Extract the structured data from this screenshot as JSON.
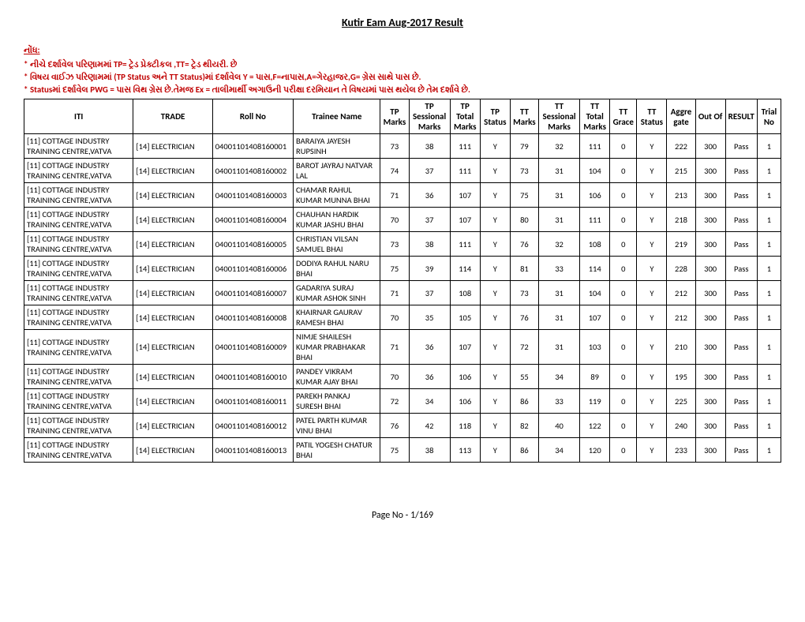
{
  "title": "Kutir Eam Aug-2017 Result",
  "notes": {
    "heading": "નોંધ:",
    "line1": "* નીચે દર્શાવેલ પરિણામમાં TP= ટ્રેડ પ્રેક્ટીકલ ,TT= ટ્રેડ થીયરી. છે",
    "line2": "* વિષય વાઈઝ પરિણામમાં (TP Status અને TT Status)માં દર્શાવેલ Y = પાસ,F=નાપાસ,A=ગેરહાજર,G= ગ્રેસ સાથે પાસ છે.",
    "line3": "* Statusમાં દર્શાવેલ PWG = પાસ વિથ ગ્રેસ છે.તેમજ Ex = તાલીમાર્થી અગાઉની પરીક્ષા દરમિયાન તે વિષયમાં પાસ થયેલ છે તેમ દર્શાવે છે."
  },
  "headers": {
    "iti": "ITI",
    "trade": "TRADE",
    "roll": "Roll No",
    "trainee": "Trainee Name",
    "tp_marks": "TP Marks",
    "tp_sessional": "TP Sessional Marks",
    "tp_total": "TP Total Marks",
    "tp_status": "TP Status",
    "tt_marks": "TT Marks",
    "tt_sessional": "TT Sessional Marks",
    "tt_total": "TT Total Marks",
    "tt_grace": "TT Grace",
    "tt_status": "TT Status",
    "aggregate": "Aggre gate",
    "outof": "Out Of",
    "result": "RESULT",
    "trial": "Trial No"
  },
  "iti_name": "[11] COTTAGE INDUSTRY TRAINING CENTRE,VATVA",
  "trade_name": "[14] ELECTRICIAN",
  "rows": [
    {
      "roll": "04001101408160001",
      "name": "BARAIYA JAYESH RUPSINH",
      "tpm": "73",
      "tps": "38",
      "tpt": "111",
      "tpst": "Y",
      "ttm": "79",
      "tts": "32",
      "ttt": "111",
      "ttg": "0",
      "ttst": "Y",
      "agg": "222",
      "out": "300",
      "res": "Pass",
      "trial": "1"
    },
    {
      "roll": "04001101408160002",
      "name": "BAROT JAYRAJ NATVAR LAL",
      "tpm": "74",
      "tps": "37",
      "tpt": "111",
      "tpst": "Y",
      "ttm": "73",
      "tts": "31",
      "ttt": "104",
      "ttg": "0",
      "ttst": "Y",
      "agg": "215",
      "out": "300",
      "res": "Pass",
      "trial": "1"
    },
    {
      "roll": "04001101408160003",
      "name": "CHAMAR  RAHUL KUMAR  MUNNA BHAI",
      "tpm": "71",
      "tps": "36",
      "tpt": "107",
      "tpst": "Y",
      "ttm": "75",
      "tts": "31",
      "ttt": "106",
      "ttg": "0",
      "ttst": "Y",
      "agg": "213",
      "out": "300",
      "res": "Pass",
      "trial": "1"
    },
    {
      "roll": "04001101408160004",
      "name": "CHAUHAN  HARDIK KUMAR  JASHU BHAI",
      "tpm": "70",
      "tps": "37",
      "tpt": "107",
      "tpst": "Y",
      "ttm": "80",
      "tts": "31",
      "ttt": "111",
      "ttg": "0",
      "ttst": "Y",
      "agg": "218",
      "out": "300",
      "res": "Pass",
      "trial": "1"
    },
    {
      "roll": "04001101408160005",
      "name": "CHRISTIAN  VILSAN SAMUEL BHAI",
      "tpm": "73",
      "tps": "38",
      "tpt": "111",
      "tpst": "Y",
      "ttm": "76",
      "tts": "32",
      "ttt": "108",
      "ttg": "0",
      "ttst": "Y",
      "agg": "219",
      "out": "300",
      "res": "Pass",
      "trial": "1"
    },
    {
      "roll": "04001101408160006",
      "name": "DODIYA  RAHUL NARU BHAI",
      "tpm": "75",
      "tps": "39",
      "tpt": "114",
      "tpst": "Y",
      "ttm": "81",
      "tts": "33",
      "ttt": "114",
      "ttg": "0",
      "ttst": "Y",
      "agg": "228",
      "out": "300",
      "res": "Pass",
      "trial": "1"
    },
    {
      "roll": "04001101408160007",
      "name": "GADARIYA  SURAJ KUMAR  ASHOK SINH",
      "tpm": "71",
      "tps": "37",
      "tpt": "108",
      "tpst": "Y",
      "ttm": "73",
      "tts": "31",
      "ttt": "104",
      "ttg": "0",
      "ttst": "Y",
      "agg": "212",
      "out": "300",
      "res": "Pass",
      "trial": "1"
    },
    {
      "roll": "04001101408160008",
      "name": "KHAIRNAR  GAURAV RAMESH BHAI",
      "tpm": "70",
      "tps": "35",
      "tpt": "105",
      "tpst": "Y",
      "ttm": "76",
      "tts": "31",
      "ttt": "107",
      "ttg": "0",
      "ttst": "Y",
      "agg": "212",
      "out": "300",
      "res": "Pass",
      "trial": "1"
    },
    {
      "roll": "04001101408160009",
      "name": "NIMJE  SHAILESH KUMAR  PRABHAKAR BHAI",
      "tpm": "71",
      "tps": "36",
      "tpt": "107",
      "tpst": "Y",
      "ttm": "72",
      "tts": "31",
      "ttt": "103",
      "ttg": "0",
      "ttst": "Y",
      "agg": "210",
      "out": "300",
      "res": "Pass",
      "trial": "1"
    },
    {
      "roll": "04001101408160010",
      "name": "PANDEY  VIKRAM KUMAR  AJAY BHAI",
      "tpm": "70",
      "tps": "36",
      "tpt": "106",
      "tpst": "Y",
      "ttm": "55",
      "tts": "34",
      "ttt": "89",
      "ttg": "0",
      "ttst": "Y",
      "agg": "195",
      "out": "300",
      "res": "Pass",
      "trial": "1"
    },
    {
      "roll": "04001101408160011",
      "name": "PAREKH  PANKAJ SURESH BHAI",
      "tpm": "72",
      "tps": "34",
      "tpt": "106",
      "tpst": "Y",
      "ttm": "86",
      "tts": "33",
      "ttt": "119",
      "ttg": "0",
      "ttst": "Y",
      "agg": "225",
      "out": "300",
      "res": "Pass",
      "trial": "1"
    },
    {
      "roll": "04001101408160012",
      "name": "PATEL  PARTH KUMAR  VINU BHAI",
      "tpm": "76",
      "tps": "42",
      "tpt": "118",
      "tpst": "Y",
      "ttm": "82",
      "tts": "40",
      "ttt": "122",
      "ttg": "0",
      "ttst": "Y",
      "agg": "240",
      "out": "300",
      "res": "Pass",
      "trial": "1"
    },
    {
      "roll": "04001101408160013",
      "name": "PATIL  YOGESH CHATUR BHAI",
      "tpm": "75",
      "tps": "38",
      "tpt": "113",
      "tpst": "Y",
      "ttm": "86",
      "tts": "34",
      "ttt": "120",
      "ttg": "0",
      "ttst": "Y",
      "agg": "233",
      "out": "300",
      "res": "Pass",
      "trial": "1"
    }
  ],
  "footer": "Page No - 1/169"
}
